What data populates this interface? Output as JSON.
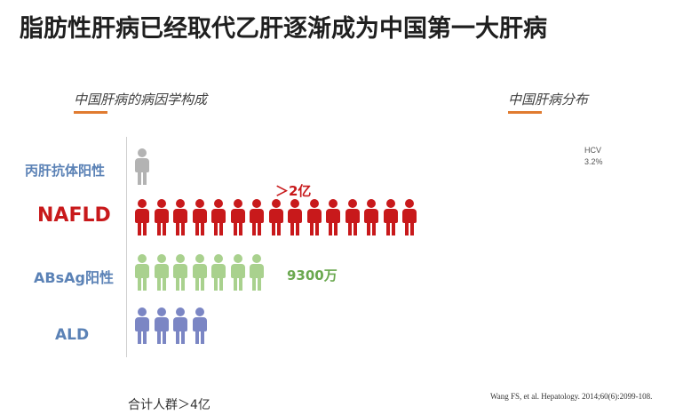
{
  "slide": {
    "title": "脂肪性肝病已经取代乙肝逐渐成为中国第一大肝病",
    "left_heading": "中国肝病的病因学构成",
    "right_heading": "中国肝病分布",
    "hcv_label": "HCV",
    "hcv_value": "3.2%",
    "accent_color": "#e07b30"
  },
  "rows": [
    {
      "label": "丙肝抗体阳性",
      "icon_count": 1,
      "color": "#b3b3b3",
      "label_color": "#5b82b6",
      "note": ""
    },
    {
      "label": "NAFLD",
      "icon_count": 15,
      "color": "#c8191b",
      "label_color": "#c8191b",
      "note": "＞2亿"
    },
    {
      "label": "ABsAg阳性",
      "icon_count": 7,
      "color": "#a9d18e",
      "label_color": "#5b82b6",
      "note": "9300万"
    },
    {
      "label": "ALD",
      "icon_count": 4,
      "color": "#7b86c4",
      "label_color": "#5b82b6",
      "note": ""
    }
  ],
  "footer": {
    "total": "合计人群＞4亿",
    "citation": "Wang FS, et al. Hepatology. 2014;60(6):2099-108."
  }
}
